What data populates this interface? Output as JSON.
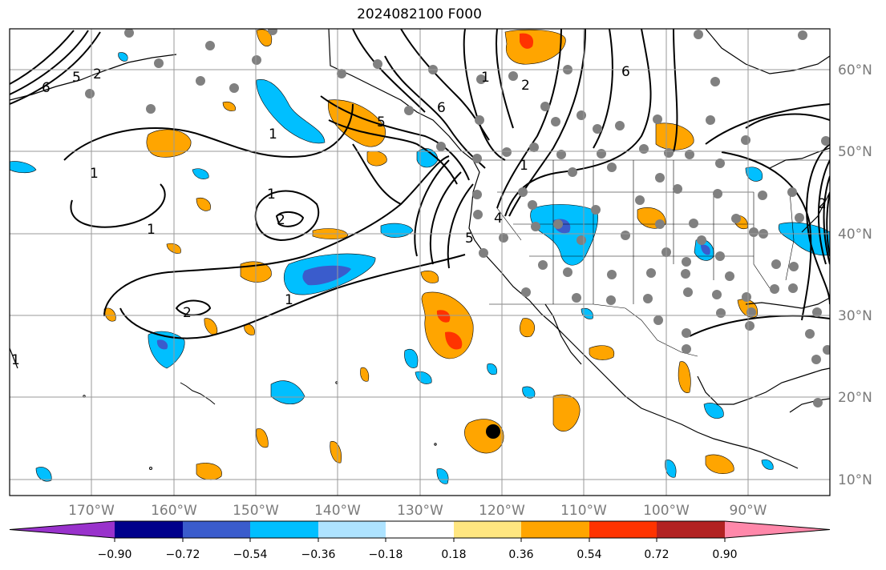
{
  "title": "2024082100 F000",
  "map": {
    "lon_range": [
      -180,
      -80
    ],
    "lat_range": [
      8,
      65
    ],
    "lat_labels": [
      "60°N",
      "50°N",
      "40°N",
      "30°N",
      "20°N",
      "10°N"
    ],
    "lon_labels": [
      "170°W",
      "160°W",
      "150°W",
      "140°W",
      "130°W",
      "120°W",
      "110°W",
      "100°W",
      "90°W"
    ],
    "contour_labels": [
      "6",
      "5",
      "2",
      "1",
      "1",
      "1",
      "1",
      "2",
      "1",
      "2",
      "1",
      "5",
      "6",
      "4",
      "5",
      "1",
      "2",
      "1",
      "6",
      "2"
    ],
    "grid": true
  },
  "colorbar": {
    "ticks": [
      "−0.90",
      "−0.72",
      "−0.54",
      "−0.36",
      "−0.18",
      "0.18",
      "0.36",
      "0.54",
      "0.72",
      "0.90"
    ],
    "colors": [
      "#9932cc",
      "#00008b",
      "#3a5ccc",
      "#00bfff",
      "#aee3ff",
      "#ffffff",
      "#ffe680",
      "#ffa500",
      "#ff3300",
      "#b22222",
      "#ff88aa"
    ]
  },
  "marker_color": "#808080"
}
